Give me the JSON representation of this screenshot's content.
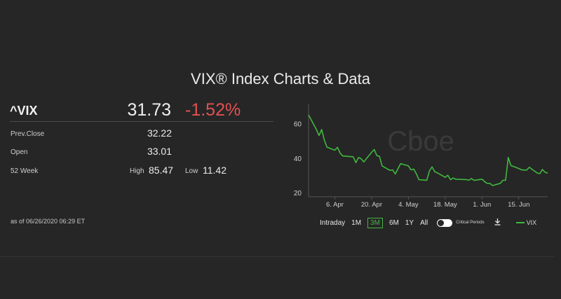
{
  "page": {
    "title": "VIX® Index Charts & Data"
  },
  "quote": {
    "symbol": "^VIX",
    "last": "31.73",
    "change_pct": "-1.52%",
    "prev_close_label": "Prev.Close",
    "prev_close": "32.22",
    "open_label": "Open",
    "open": "33.01",
    "week52_label": "52 Week",
    "high_label": "High",
    "high": "85.47",
    "low_label": "Low",
    "low": "11.42",
    "as_of": "as of 06/26/2020 06:29 ET"
  },
  "colors": {
    "background": "#262626",
    "negative": "#e25151",
    "line": "#3fb83f",
    "watermark": "#3a3a3a"
  },
  "chart_controls": {
    "ranges": [
      "Intraday",
      "1M",
      "3M",
      "6M",
      "1Y",
      "All"
    ],
    "selected": "3M",
    "critical_periods_label": "Critical Periods",
    "critical_periods_on": false,
    "download_icon": "download-icon",
    "legend_label": "VIX"
  },
  "chart_data": {
    "type": "line",
    "watermark": "Cboe",
    "y_ticks": [
      "20",
      "40",
      "60"
    ],
    "ylim": [
      18,
      70
    ],
    "x_ticks": [
      "6. Apr",
      "20. Apr",
      "4. May",
      "18. May",
      "1. Jun",
      "15. Jun"
    ],
    "grid": false,
    "series": [
      {
        "name": "VIX",
        "x": [
          "2020-03-27",
          "2020-03-30",
          "2020-03-31",
          "2020-04-01",
          "2020-04-02",
          "2020-04-03",
          "2020-04-06",
          "2020-04-07",
          "2020-04-08",
          "2020-04-09",
          "2020-04-13",
          "2020-04-14",
          "2020-04-15",
          "2020-04-16",
          "2020-04-17",
          "2020-04-20",
          "2020-04-21",
          "2020-04-22",
          "2020-04-23",
          "2020-04-24",
          "2020-04-27",
          "2020-04-28",
          "2020-04-29",
          "2020-04-30",
          "2020-05-01",
          "2020-05-04",
          "2020-05-05",
          "2020-05-06",
          "2020-05-07",
          "2020-05-08",
          "2020-05-11",
          "2020-05-12",
          "2020-05-13",
          "2020-05-14",
          "2020-05-15",
          "2020-05-18",
          "2020-05-19",
          "2020-05-20",
          "2020-05-21",
          "2020-05-22",
          "2020-05-26",
          "2020-05-27",
          "2020-05-28",
          "2020-05-29",
          "2020-06-01",
          "2020-06-02",
          "2020-06-03",
          "2020-06-04",
          "2020-06-05",
          "2020-06-08",
          "2020-06-09",
          "2020-06-10",
          "2020-06-11",
          "2020-06-12",
          "2020-06-15",
          "2020-06-16",
          "2020-06-17",
          "2020-06-18",
          "2020-06-19",
          "2020-06-22",
          "2020-06-23",
          "2020-06-24",
          "2020-06-25",
          "2020-06-26"
        ],
        "values": [
          65.5,
          57,
          53.5,
          57,
          50.9,
          46.8,
          45,
          46.7,
          43.4,
          41.7,
          41.2,
          37.8,
          40.8,
          40.1,
          38.2,
          43.8,
          45.4,
          41.9,
          41.4,
          35.9,
          33.3,
          33.6,
          31.2,
          34.2,
          37.2,
          35.9,
          33.6,
          34.1,
          31.4,
          27.9,
          27.6,
          33,
          35.3,
          32.6,
          31.9,
          29.3,
          30.5,
          27.9,
          28.9,
          28.2,
          28,
          27.6,
          28.6,
          27.5,
          28.2,
          26.8,
          25.7,
          25.8,
          24.5,
          25.8,
          27.6,
          27.6,
          40.8,
          36.1,
          34.4,
          33.7,
          33.5,
          33.5,
          35.1,
          31.8,
          31.4,
          33.8,
          32.2,
          31.7
        ]
      }
    ]
  }
}
